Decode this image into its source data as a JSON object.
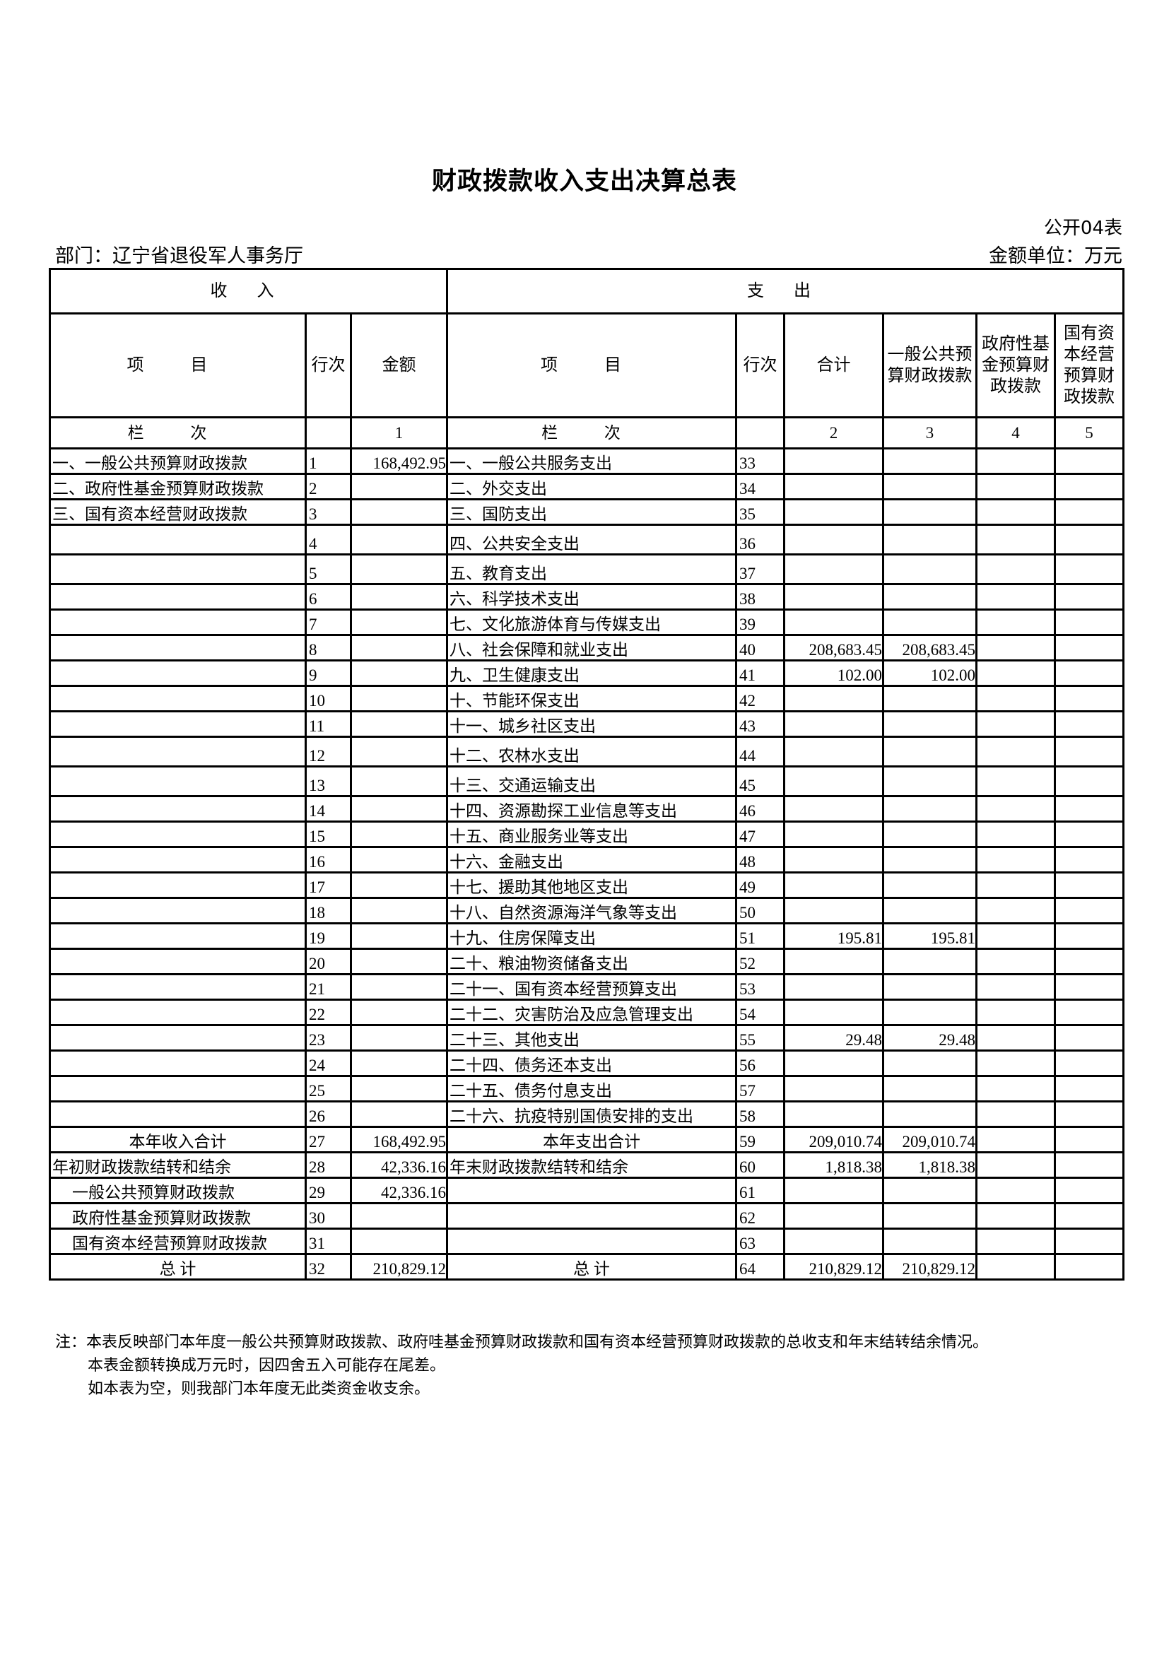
{
  "title": "财政拨款收入支出决算总表",
  "table_no": "公开04表",
  "department": "部门：辽宁省退役军人事务厅",
  "unit": "金额单位：万元",
  "header": {
    "income": "收 入",
    "expense": "支 出",
    "item": "项 目",
    "line": "行次",
    "amount": "金额",
    "total": "合计",
    "general": "一般公共预算财政拨款",
    "fund": "政府性基金预算财政拨款",
    "state": "国有资本经营预算财政拨款",
    "col_label": "栏 次",
    "col_nums": [
      "1",
      "2",
      "3",
      "4",
      "5"
    ]
  },
  "rows": [
    {
      "in_item": "一、一般公共预算财政拨款",
      "in_line": "1",
      "in_amt": "168,492.95",
      "ex_item": "一、一般公共服务支出",
      "ex_line": "33",
      "total": "",
      "general": "",
      "fund": "",
      "state": ""
    },
    {
      "in_item": "二、政府性基金预算财政拨款",
      "in_line": "2",
      "in_amt": "",
      "ex_item": "二、外交支出",
      "ex_line": "34",
      "total": "",
      "general": "",
      "fund": "",
      "state": ""
    },
    {
      "in_item": "三、国有资本经营财政拨款",
      "in_line": "3",
      "in_amt": "",
      "ex_item": "三、国防支出",
      "ex_line": "35",
      "total": "",
      "general": "",
      "fund": "",
      "state": ""
    },
    {
      "in_item": "",
      "in_line": "4",
      "in_amt": "",
      "ex_item": "四、公共安全支出",
      "ex_line": "36",
      "total": "",
      "general": "",
      "fund": "",
      "state": ""
    },
    {
      "in_item": "",
      "in_line": "5",
      "in_amt": "",
      "ex_item": "五、教育支出",
      "ex_line": "37",
      "total": "",
      "general": "",
      "fund": "",
      "state": ""
    },
    {
      "in_item": "",
      "in_line": "6",
      "in_amt": "",
      "ex_item": "六、科学技术支出",
      "ex_line": "38",
      "total": "",
      "general": "",
      "fund": "",
      "state": ""
    },
    {
      "in_item": "",
      "in_line": "7",
      "in_amt": "",
      "ex_item": "七、文化旅游体育与传媒支出",
      "ex_line": "39",
      "total": "",
      "general": "",
      "fund": "",
      "state": ""
    },
    {
      "in_item": "",
      "in_line": "8",
      "in_amt": "",
      "ex_item": "八、社会保障和就业支出",
      "ex_line": "40",
      "total": "208,683.45",
      "general": "208,683.45",
      "fund": "",
      "state": ""
    },
    {
      "in_item": "",
      "in_line": "9",
      "in_amt": "",
      "ex_item": "九、卫生健康支出",
      "ex_line": "41",
      "total": "102.00",
      "general": "102.00",
      "fund": "",
      "state": ""
    },
    {
      "in_item": "",
      "in_line": "10",
      "in_amt": "",
      "ex_item": "十、节能环保支出",
      "ex_line": "42",
      "total": "",
      "general": "",
      "fund": "",
      "state": ""
    },
    {
      "in_item": "",
      "in_line": "11",
      "in_amt": "",
      "ex_item": "十一、城乡社区支出",
      "ex_line": "43",
      "total": "",
      "general": "",
      "fund": "",
      "state": ""
    },
    {
      "in_item": "",
      "in_line": "12",
      "in_amt": "",
      "ex_item": "十二、农林水支出",
      "ex_line": "44",
      "total": "",
      "general": "",
      "fund": "",
      "state": ""
    },
    {
      "in_item": "",
      "in_line": "13",
      "in_amt": "",
      "ex_item": "十三、交通运输支出",
      "ex_line": "45",
      "total": "",
      "general": "",
      "fund": "",
      "state": ""
    },
    {
      "in_item": "",
      "in_line": "14",
      "in_amt": "",
      "ex_item": "十四、资源勘探工业信息等支出",
      "ex_line": "46",
      "total": "",
      "general": "",
      "fund": "",
      "state": ""
    },
    {
      "in_item": "",
      "in_line": "15",
      "in_amt": "",
      "ex_item": "十五、商业服务业等支出",
      "ex_line": "47",
      "total": "",
      "general": "",
      "fund": "",
      "state": ""
    },
    {
      "in_item": "",
      "in_line": "16",
      "in_amt": "",
      "ex_item": "十六、金融支出",
      "ex_line": "48",
      "total": "",
      "general": "",
      "fund": "",
      "state": ""
    },
    {
      "in_item": "",
      "in_line": "17",
      "in_amt": "",
      "ex_item": "十七、援助其他地区支出",
      "ex_line": "49",
      "total": "",
      "general": "",
      "fund": "",
      "state": ""
    },
    {
      "in_item": "",
      "in_line": "18",
      "in_amt": "",
      "ex_item": "十八、自然资源海洋气象等支出",
      "ex_line": "50",
      "total": "",
      "general": "",
      "fund": "",
      "state": ""
    },
    {
      "in_item": "",
      "in_line": "19",
      "in_amt": "",
      "ex_item": "十九、住房保障支出",
      "ex_line": "51",
      "total": "195.81",
      "general": "195.81",
      "fund": "",
      "state": ""
    },
    {
      "in_item": "",
      "in_line": "20",
      "in_amt": "",
      "ex_item": "二十、粮油物资储备支出",
      "ex_line": "52",
      "total": "",
      "general": "",
      "fund": "",
      "state": ""
    },
    {
      "in_item": "",
      "in_line": "21",
      "in_amt": "",
      "ex_item": "二十一、国有资本经营预算支出",
      "ex_line": "53",
      "total": "",
      "general": "",
      "fund": "",
      "state": ""
    },
    {
      "in_item": "",
      "in_line": "22",
      "in_amt": "",
      "ex_item": "二十二、灾害防治及应急管理支出",
      "ex_line": "54",
      "total": "",
      "general": "",
      "fund": "",
      "state": ""
    },
    {
      "in_item": "",
      "in_line": "23",
      "in_amt": "",
      "ex_item": "二十三、其他支出",
      "ex_line": "55",
      "total": "29.48",
      "general": "29.48",
      "fund": "",
      "state": ""
    },
    {
      "in_item": "",
      "in_line": "24",
      "in_amt": "",
      "ex_item": "二十四、债务还本支出",
      "ex_line": "56",
      "total": "",
      "general": "",
      "fund": "",
      "state": ""
    },
    {
      "in_item": "",
      "in_line": "25",
      "in_amt": "",
      "ex_item": "二十五、债务付息支出",
      "ex_line": "57",
      "total": "",
      "general": "",
      "fund": "",
      "state": ""
    },
    {
      "in_item": "",
      "in_line": "26",
      "in_amt": "",
      "ex_item": "二十六、抗疫特别国债安排的支出",
      "ex_line": "58",
      "total": "",
      "general": "",
      "fund": "",
      "state": ""
    },
    {
      "in_item": "本年收入合计",
      "in_line": "27",
      "in_amt": "168,492.95",
      "ex_item": "本年支出合计",
      "ex_line": "59",
      "total": "209,010.74",
      "general": "209,010.74",
      "fund": "",
      "state": "",
      "center": true
    },
    {
      "in_item": "年初财政拨款结转和结余",
      "in_line": "28",
      "in_amt": "42,336.16",
      "ex_item": "年末财政拨款结转和结余",
      "ex_line": "60",
      "total": "1,818.38",
      "general": "1,818.38",
      "fund": "",
      "state": ""
    },
    {
      "in_item": "一般公共预算财政拨款",
      "in_line": "29",
      "in_amt": "42,336.16",
      "ex_item": "",
      "ex_line": "61",
      "total": "",
      "general": "",
      "fund": "",
      "state": "",
      "indent": true
    },
    {
      "in_item": "政府性基金预算财政拨款",
      "in_line": "30",
      "in_amt": "",
      "ex_item": "",
      "ex_line": "62",
      "total": "",
      "general": "",
      "fund": "",
      "state": "",
      "indent": true
    },
    {
      "in_item": "国有资本经营预算财政拨款",
      "in_line": "31",
      "in_amt": "",
      "ex_item": "",
      "ex_line": "63",
      "total": "",
      "general": "",
      "fund": "",
      "state": "",
      "indent": true
    },
    {
      "in_item": "总 计",
      "in_line": "32",
      "in_amt": "210,829.12",
      "ex_item": "总 计",
      "ex_line": "64",
      "total": "210,829.12",
      "general": "210,829.12",
      "fund": "",
      "state": "",
      "center": true
    }
  ],
  "notes": [
    "注：本表反映部门本年度一般公共预算财政拨款、政府哇基金预算财政拨款和国有资本经营预算财政拨款的总收支和年末结转结余情况。",
    "本表金额转换成万元时，因四舍五入可能存在尾差。",
    "如本表为空，则我部门本年度无此类资金收支余。"
  ]
}
